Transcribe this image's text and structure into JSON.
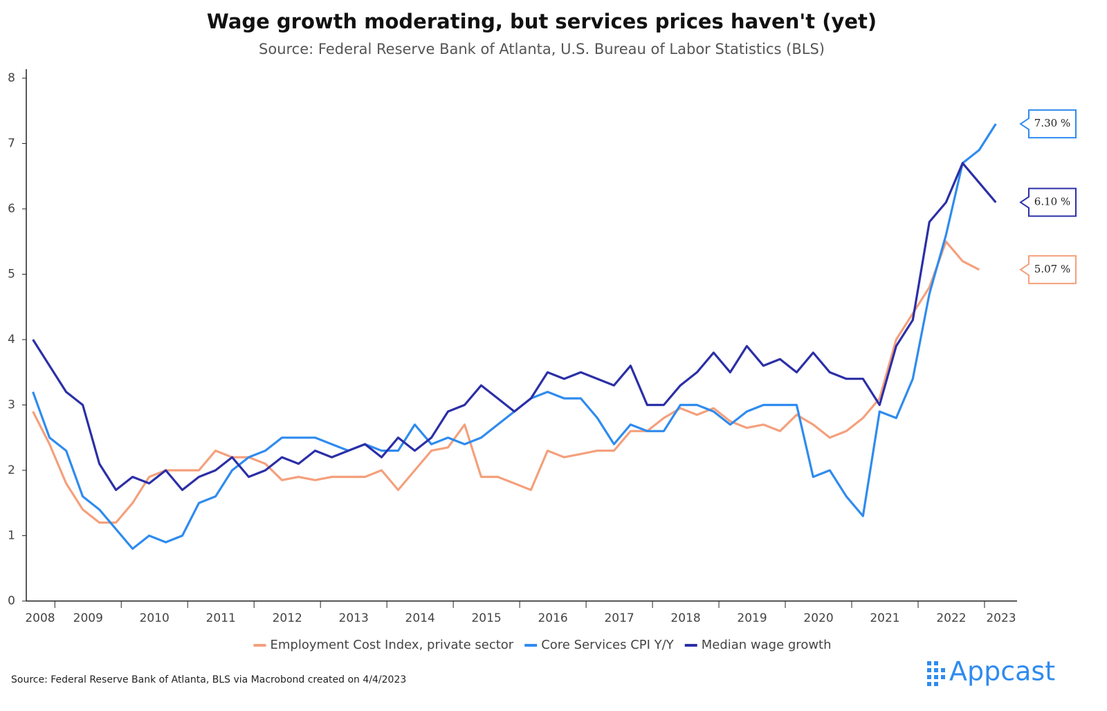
{
  "chart_data": {
    "type": "line",
    "title": "Wage growth moderating, but services prices haven't (yet)",
    "subtitle": "Source: Federal Reserve Bank of Atlanta, U.S. Bureau of Labor Statistics (BLS)",
    "footer": "Source: Federal Reserve Bank of Atlanta, BLS via Macrobond created on 4/4/2023",
    "brand": "Appcast",
    "x": [
      2008.67,
      2008.92,
      2009.17,
      2009.42,
      2009.67,
      2009.92,
      2010.17,
      2010.42,
      2010.67,
      2010.92,
      2011.17,
      2011.42,
      2011.67,
      2011.92,
      2012.17,
      2012.42,
      2012.67,
      2012.92,
      2013.17,
      2013.42,
      2013.67,
      2013.92,
      2014.17,
      2014.42,
      2014.67,
      2014.92,
      2015.17,
      2015.42,
      2015.67,
      2015.92,
      2016.17,
      2016.42,
      2016.67,
      2016.92,
      2017.17,
      2017.42,
      2017.67,
      2017.92,
      2018.17,
      2018.42,
      2018.67,
      2018.92,
      2019.17,
      2019.42,
      2019.67,
      2019.92,
      2020.17,
      2020.42,
      2020.67,
      2020.92,
      2021.17,
      2021.42,
      2021.67,
      2021.92,
      2022.17,
      2022.42,
      2022.67,
      2022.92,
      2023.17
    ],
    "series": [
      {
        "name": "Employment Cost Index, private sector",
        "color": "#f4a07c",
        "last_label": "5.07 %",
        "values": [
          2.9,
          2.4,
          1.8,
          1.4,
          1.2,
          1.2,
          1.5,
          1.9,
          2.0,
          2.0,
          2.0,
          2.3,
          2.2,
          2.2,
          2.1,
          1.85,
          1.9,
          1.85,
          1.9,
          1.9,
          1.9,
          2.0,
          1.7,
          2.0,
          2.3,
          2.35,
          2.7,
          1.9,
          1.9,
          1.8,
          1.7,
          2.3,
          2.2,
          2.25,
          2.3,
          2.3,
          2.6,
          2.6,
          2.8,
          2.95,
          2.85,
          2.95,
          2.75,
          2.65,
          2.7,
          2.6,
          2.85,
          2.7,
          2.5,
          2.6,
          2.8,
          3.1,
          4.0,
          4.4,
          4.8,
          5.5,
          5.2,
          5.07,
          null
        ]
      },
      {
        "name": "Core Services CPI Y/Y",
        "color": "#2f8bef",
        "last_label": "7.30 %",
        "values": [
          3.2,
          2.5,
          2.3,
          1.6,
          1.4,
          1.1,
          0.8,
          1.0,
          0.9,
          1.0,
          1.5,
          1.6,
          2.0,
          2.2,
          2.3,
          2.5,
          2.5,
          2.5,
          2.4,
          2.3,
          2.4,
          2.3,
          2.3,
          2.7,
          2.4,
          2.5,
          2.4,
          2.5,
          2.7,
          2.9,
          3.1,
          3.2,
          3.1,
          3.1,
          2.8,
          2.4,
          2.7,
          2.6,
          2.6,
          3.0,
          3.0,
          2.9,
          2.7,
          2.9,
          3.0,
          3.0,
          3.0,
          1.9,
          2.0,
          1.6,
          1.3,
          2.9,
          2.8,
          3.4,
          4.7,
          5.6,
          6.7,
          6.9,
          7.3
        ]
      },
      {
        "name": "Median wage growth",
        "color": "#2b2fa6",
        "last_label": "6.10 %",
        "values": [
          4.0,
          3.6,
          3.2,
          3.0,
          2.1,
          1.7,
          1.9,
          1.8,
          2.0,
          1.7,
          1.9,
          2.0,
          2.2,
          1.9,
          2.0,
          2.2,
          2.1,
          2.3,
          2.2,
          2.3,
          2.4,
          2.2,
          2.5,
          2.3,
          2.5,
          2.9,
          3.0,
          3.3,
          3.1,
          2.9,
          3.1,
          3.5,
          3.4,
          3.5,
          3.4,
          3.3,
          3.6,
          3.0,
          3.0,
          3.3,
          3.5,
          3.8,
          3.5,
          3.9,
          3.6,
          3.7,
          3.5,
          3.8,
          3.5,
          3.4,
          3.4,
          3.0,
          3.9,
          4.3,
          5.8,
          6.1,
          6.7,
          6.4,
          6.1
        ]
      }
    ],
    "xlim": [
      2008.57,
      2023.49
    ],
    "xticks": [
      2008,
      2009,
      2010,
      2011,
      2012,
      2013,
      2014,
      2015,
      2016,
      2017,
      2018,
      2019,
      2020,
      2021,
      2022,
      2023
    ],
    "ylim": [
      0,
      8
    ],
    "yticks": [
      0,
      1,
      2,
      3,
      4,
      5,
      6,
      7,
      8
    ],
    "grid": false
  }
}
